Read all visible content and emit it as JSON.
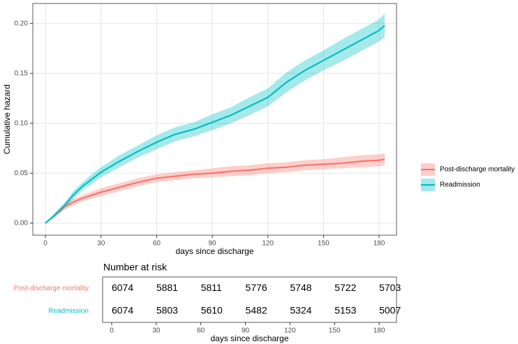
{
  "chart_data": [
    {
      "type": "line",
      "ylabel": "Cumulative hazard",
      "xlabel": "days since discharge",
      "xlim": [
        -6.8,
        189.4
      ],
      "ylim": [
        -0.012,
        0.22
      ],
      "xticks": [
        0,
        30,
        60,
        90,
        120,
        150,
        180
      ],
      "yticks": [
        {
          "value": 0,
          "label": "0.00"
        },
        0.05,
        {
          "value": 0.1,
          "label": "0.10"
        },
        0.15,
        {
          "value": 0.2,
          "label": "0.20"
        }
      ],
      "grid": true,
      "legend": "right",
      "series": [
        {
          "name": "Post-discharge mortality",
          "color": "#F8766D",
          "x": [
            0,
            5,
            10,
            15,
            20,
            30,
            40,
            50,
            60,
            70,
            80,
            90,
            100,
            110,
            120,
            130,
            140,
            150,
            160,
            170,
            180,
            183
          ],
          "values": [
            0,
            0.008,
            0.016,
            0.021,
            0.025,
            0.031,
            0.036,
            0.041,
            0.045,
            0.047,
            0.049,
            0.05,
            0.052,
            0.053,
            0.055,
            0.056,
            0.058,
            0.059,
            0.06,
            0.062,
            0.063,
            0.064
          ],
          "lower": [
            0,
            0.006,
            0.013,
            0.018,
            0.022,
            0.027,
            0.032,
            0.037,
            0.041,
            0.043,
            0.045,
            0.046,
            0.047,
            0.048,
            0.05,
            0.051,
            0.053,
            0.054,
            0.055,
            0.056,
            0.057,
            0.058
          ],
          "upper": [
            0,
            0.01,
            0.019,
            0.024,
            0.028,
            0.035,
            0.04,
            0.045,
            0.049,
            0.051,
            0.053,
            0.055,
            0.057,
            0.058,
            0.06,
            0.061,
            0.063,
            0.064,
            0.066,
            0.068,
            0.069,
            0.07
          ]
        },
        {
          "name": "Readmission",
          "color": "#00BFC4",
          "x": [
            0,
            5,
            10,
            15,
            20,
            25,
            30,
            40,
            50,
            60,
            70,
            80,
            90,
            100,
            110,
            120,
            130,
            140,
            150,
            160,
            170,
            180,
            183
          ],
          "values": [
            0,
            0.008,
            0.017,
            0.028,
            0.037,
            0.044,
            0.051,
            0.062,
            0.072,
            0.081,
            0.089,
            0.094,
            0.101,
            0.108,
            0.117,
            0.126,
            0.141,
            0.153,
            0.163,
            0.173,
            0.183,
            0.193,
            0.198
          ],
          "lower": [
            0,
            0.006,
            0.014,
            0.024,
            0.033,
            0.039,
            0.046,
            0.056,
            0.066,
            0.074,
            0.082,
            0.087,
            0.093,
            0.1,
            0.108,
            0.117,
            0.131,
            0.143,
            0.153,
            0.162,
            0.172,
            0.182,
            0.186
          ],
          "upper": [
            0,
            0.01,
            0.02,
            0.032,
            0.041,
            0.049,
            0.056,
            0.068,
            0.078,
            0.088,
            0.096,
            0.101,
            0.109,
            0.116,
            0.126,
            0.135,
            0.151,
            0.163,
            0.173,
            0.184,
            0.194,
            0.204,
            0.21
          ]
        }
      ]
    },
    {
      "type": "table",
      "title": "Number at risk",
      "xlabel": "days since discharge",
      "xlim": [
        -6.1,
        191.7
      ],
      "xticks": [
        0,
        30,
        60,
        90,
        120,
        150,
        180
      ],
      "rows": [
        {
          "name": "Post-discharge mortality",
          "color": "#F8766D",
          "values": [
            6074,
            5881,
            5811,
            5776,
            5748,
            5722,
            5703
          ]
        },
        {
          "name": "Readmission",
          "color": "#00BFC4",
          "values": [
            6074,
            5803,
            5610,
            5482,
            5324,
            5153,
            5007
          ]
        }
      ]
    }
  ]
}
